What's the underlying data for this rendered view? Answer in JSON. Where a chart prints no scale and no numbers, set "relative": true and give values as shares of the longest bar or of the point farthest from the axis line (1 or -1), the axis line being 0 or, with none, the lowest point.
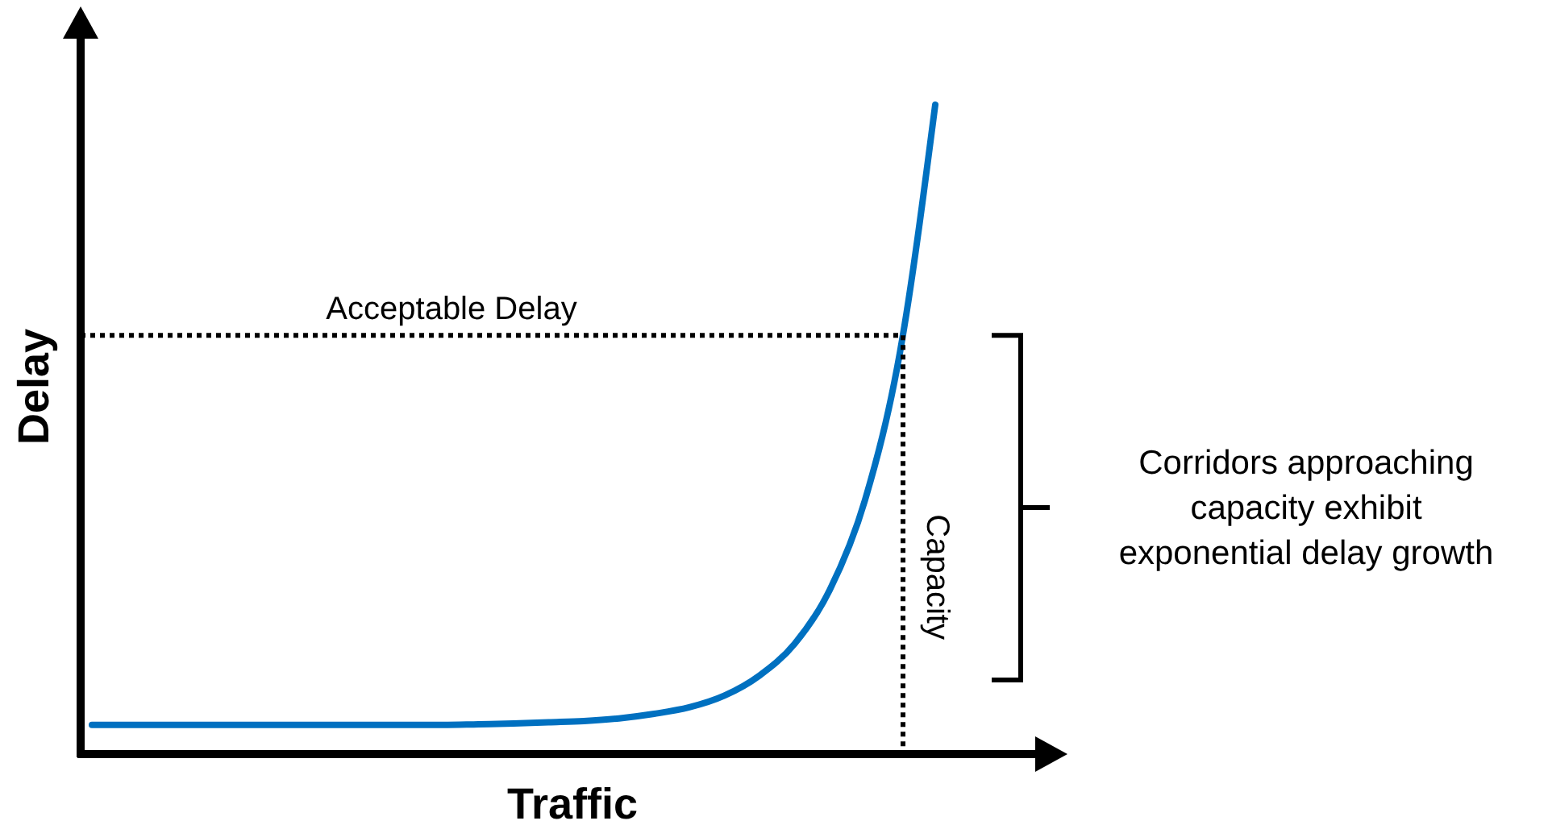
{
  "chart_data": {
    "type": "line",
    "relative": true,
    "xlabel": "Traffic",
    "ylabel": "Delay",
    "categories": [
      null,
      null,
      null,
      null,
      null,
      null,
      null,
      null,
      null,
      null,
      null,
      null,
      null,
      null,
      null,
      null,
      null,
      null,
      null,
      null,
      null,
      null,
      null,
      null,
      null
    ],
    "series": [
      {
        "color": "#0070c0",
        "values": [
          0.045,
          0.045,
          0.045,
          0.045,
          0.045,
          0.045,
          0.045,
          0.045,
          0.045,
          0.045,
          0.045,
          0.046,
          0.047,
          0.049,
          0.051,
          0.055,
          0.062,
          0.072,
          0.09,
          0.121,
          0.17,
          0.253,
          0.391,
          0.62,
          1
        ]
      }
    ],
    "ref_lines": [
      {
        "axis": "y",
        "value": 0.645,
        "label": "Acceptable Delay",
        "line_style": "dotted",
        "color": "#000000"
      }
    ],
    "annotations": [
      "Capacity",
      "Corridors approaching capacity exhibit exponential delay growth"
    ]
  }
}
